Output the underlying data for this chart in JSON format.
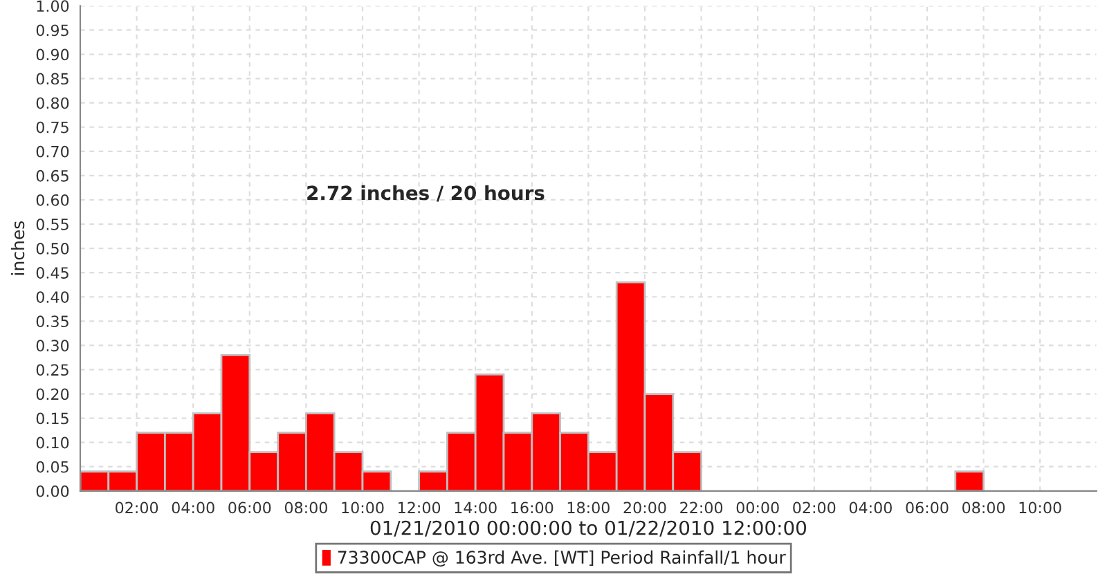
{
  "chart_data": {
    "type": "bar",
    "xlabel": "01/21/2010 00:00:00 to 01/22/2010 12:00:00",
    "ylabel": "inches",
    "annotations": [
      "2.72 inches / 20 hours"
    ],
    "x": [
      "2010-01-21T00:30",
      "2010-01-21T01:30",
      "2010-01-21T02:30",
      "2010-01-21T03:30",
      "2010-01-21T04:30",
      "2010-01-21T05:30",
      "2010-01-21T06:30",
      "2010-01-21T07:30",
      "2010-01-21T08:30",
      "2010-01-21T09:30",
      "2010-01-21T10:30",
      "2010-01-21T12:30",
      "2010-01-21T13:30",
      "2010-01-21T14:30",
      "2010-01-21T15:30",
      "2010-01-21T16:30",
      "2010-01-21T17:30",
      "2010-01-21T18:30",
      "2010-01-21T19:30",
      "2010-01-21T20:30",
      "2010-01-21T21:30",
      "2010-01-22T07:30"
    ],
    "series": [
      {
        "name": "73300CAP @ 163rd Ave. [WT] Period Rainfall/1 hour",
        "color": "#ff0000",
        "values": [
          0.04,
          0.04,
          0.12,
          0.12,
          0.16,
          0.28,
          0.08,
          0.12,
          0.16,
          0.08,
          0.04,
          0.04,
          0.12,
          0.24,
          0.12,
          0.16,
          0.12,
          0.08,
          0.43,
          0.2,
          0.08,
          0.04
        ]
      }
    ],
    "xlim": [
      "2010-01-21T00:00",
      "2010-01-22T12:00"
    ],
    "xticks": [
      {
        "value": "2010-01-21T02:00",
        "label": "02:00"
      },
      {
        "value": "2010-01-21T04:00",
        "label": "04:00"
      },
      {
        "value": "2010-01-21T06:00",
        "label": "06:00"
      },
      {
        "value": "2010-01-21T08:00",
        "label": "08:00"
      },
      {
        "value": "2010-01-21T10:00",
        "label": "10:00"
      },
      {
        "value": "2010-01-21T12:00",
        "label": "12:00"
      },
      {
        "value": "2010-01-21T14:00",
        "label": "14:00"
      },
      {
        "value": "2010-01-21T16:00",
        "label": "16:00"
      },
      {
        "value": "2010-01-21T18:00",
        "label": "18:00"
      },
      {
        "value": "2010-01-21T20:00",
        "label": "20:00"
      },
      {
        "value": "2010-01-21T22:00",
        "label": "22:00"
      },
      {
        "value": "2010-01-22T00:00",
        "label": "00:00"
      },
      {
        "value": "2010-01-22T02:00",
        "label": "02:00"
      },
      {
        "value": "2010-01-22T04:00",
        "label": "04:00"
      },
      {
        "value": "2010-01-22T06:00",
        "label": "06:00"
      },
      {
        "value": "2010-01-22T08:00",
        "label": "08:00"
      },
      {
        "value": "2010-01-22T10:00",
        "label": "10:00"
      }
    ],
    "ylim": [
      0,
      1
    ],
    "yticks": [
      {
        "value": 0,
        "label": "0.00"
      },
      {
        "value": 0.05,
        "label": "0.05"
      },
      {
        "value": 0.1,
        "label": "0.10"
      },
      {
        "value": 0.15,
        "label": "0.15"
      },
      {
        "value": 0.2,
        "label": "0.20"
      },
      {
        "value": 0.25,
        "label": "0.25"
      },
      {
        "value": 0.3,
        "label": "0.30"
      },
      {
        "value": 0.35,
        "label": "0.35"
      },
      {
        "value": 0.4,
        "label": "0.40"
      },
      {
        "value": 0.45,
        "label": "0.45"
      },
      {
        "value": 0.5,
        "label": "0.50"
      },
      {
        "value": 0.55,
        "label": "0.55"
      },
      {
        "value": 0.6,
        "label": "0.60"
      },
      {
        "value": 0.65,
        "label": "0.65"
      },
      {
        "value": 0.7,
        "label": "0.70"
      },
      {
        "value": 0.75,
        "label": "0.75"
      },
      {
        "value": 0.8,
        "label": "0.80"
      },
      {
        "value": 0.85,
        "label": "0.85"
      },
      {
        "value": 0.9,
        "label": "0.90"
      },
      {
        "value": 0.95,
        "label": "0.95"
      },
      {
        "value": 1,
        "label": "1.00"
      }
    ],
    "grid": true,
    "legend": "bottom"
  }
}
